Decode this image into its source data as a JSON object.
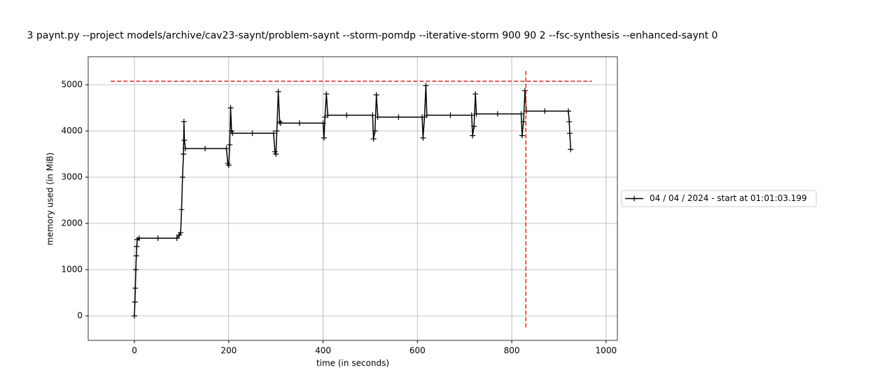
{
  "chart_data": {
    "type": "line",
    "title": "3 paynt.py --project models/archive/cav23-saynt/problem-saynt --storm-pomdp --iterative-storm 900 90 2 --fsc-synthesis --enhanced-saynt 0",
    "xlabel": "time (in seconds)",
    "ylabel": "memory used (in MiB)",
    "x": [
      0,
      1,
      2,
      3,
      4,
      5,
      6,
      10,
      50,
      90,
      95,
      98,
      100,
      102,
      104,
      105,
      106,
      108,
      150,
      195,
      198,
      200,
      202,
      204,
      206,
      208,
      250,
      295,
      298,
      300,
      302,
      305,
      308,
      310,
      350,
      400,
      402,
      404,
      407,
      410,
      450,
      505,
      507,
      510,
      513,
      516,
      560,
      610,
      612,
      615,
      618,
      620,
      670,
      715,
      717,
      720,
      723,
      725,
      770,
      820,
      822,
      825,
      828,
      831,
      870,
      920,
      922,
      923,
      925
    ],
    "series": [
      {
        "name": "04 / 04 / 2024 - start at 01:01:03.199",
        "color": "#000000",
        "values": [
          0,
          300,
          600,
          1000,
          1300,
          1500,
          1650,
          1680,
          1680,
          1680,
          1750,
          1800,
          2300,
          3000,
          3500,
          4200,
          3800,
          3620,
          3620,
          3620,
          3300,
          3260,
          3700,
          4500,
          4000,
          3950,
          3950,
          3950,
          3550,
          3500,
          4000,
          4850,
          4200,
          4170,
          4170,
          4170,
          3850,
          4300,
          4800,
          4340,
          4340,
          4340,
          3830,
          4000,
          4780,
          4300,
          4300,
          4300,
          3850,
          4300,
          4980,
          4340,
          4340,
          4340,
          3900,
          4100,
          4800,
          4370,
          4370,
          4370,
          3900,
          4200,
          4870,
          4430,
          4430,
          4430,
          4200,
          3950,
          3600
        ]
      }
    ],
    "reference_lines": [
      {
        "orientation": "h",
        "value": 5076,
        "from": -50,
        "to": 970,
        "color": "#d62728"
      },
      {
        "orientation": "v",
        "value": 830,
        "from": -250,
        "to": 5330,
        "color": "#d62728"
      }
    ],
    "xlim": [
      -98,
      1024
    ],
    "ylim": [
      -530,
      5606
    ],
    "xticks": [
      0,
      200,
      400,
      600,
      800,
      1000
    ],
    "yticks": [
      0,
      1000,
      2000,
      3000,
      4000,
      5000
    ],
    "grid": true,
    "legend": "outside right"
  }
}
